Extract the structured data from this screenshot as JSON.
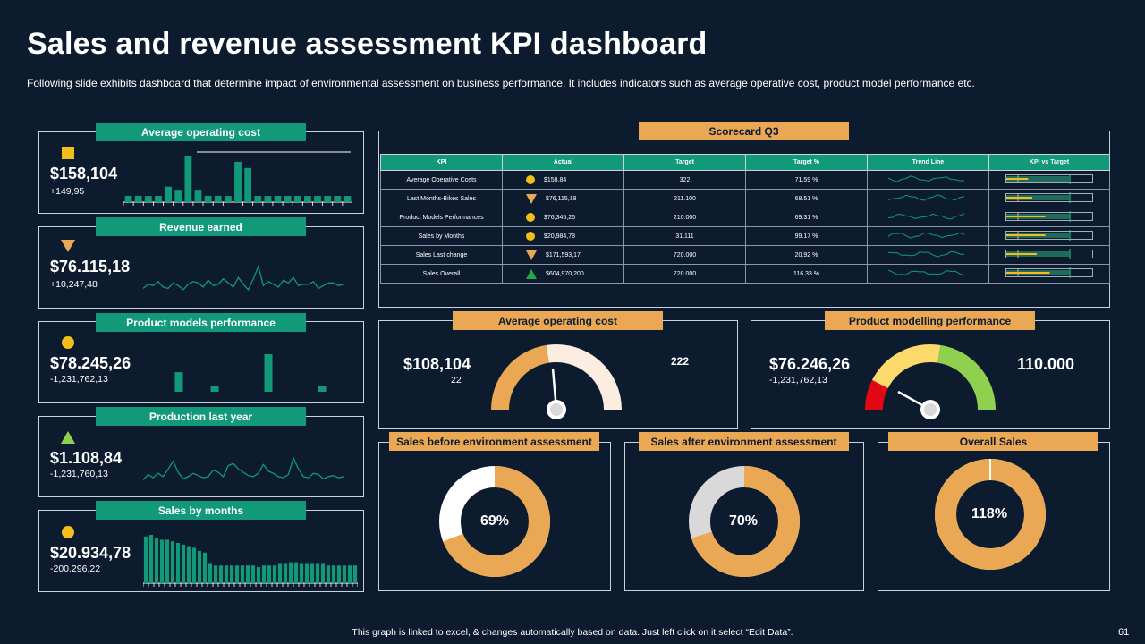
{
  "header": {
    "title": "Sales and revenue assessment KPI dashboard",
    "subtitle": "Following slide exhibits dashboard that determine impact of environmental assessment on business performance. It includes indicators such as average operative cost, product model performance etc."
  },
  "kpi_cards": [
    {
      "title": "Average operating cost",
      "icon": "square-icon",
      "value": "$158,104",
      "delta": "+149,95",
      "chart_type": "bar",
      "series": [
        2,
        2,
        2,
        2,
        5,
        4,
        15,
        4,
        2,
        2,
        2,
        13,
        11,
        2,
        2,
        2,
        2,
        2,
        2,
        2,
        2,
        2,
        2
      ]
    },
    {
      "title": "Revenue earned",
      "icon": "triangle-down-icon",
      "value": "$76.115,18",
      "delta": "+10,247,48",
      "chart_type": "line",
      "series": [
        5,
        8,
        7,
        10,
        6,
        5,
        9,
        7,
        4,
        8,
        10,
        9,
        6,
        11,
        7,
        8,
        12,
        9,
        6,
        13,
        8,
        4,
        12,
        21,
        7,
        10,
        8,
        6,
        11,
        9,
        13,
        7,
        8,
        8,
        10,
        5,
        7,
        9,
        9,
        7,
        8
      ]
    },
    {
      "title": "Product models performance",
      "icon": "circle-icon",
      "value": "$78.245,26",
      "delta": "-1,231,762,13",
      "chart_type": "bar",
      "series": [
        0,
        25,
        0,
        8,
        0,
        0,
        48,
        0,
        0,
        8
      ]
    },
    {
      "title": "Production last year",
      "icon": "triangle-up-icon",
      "value": "$1.108,84",
      "delta": "-1,231,760,13",
      "chart_type": "line",
      "series": [
        6,
        11,
        8,
        12,
        9,
        16,
        23,
        13,
        7,
        9,
        12,
        10,
        8,
        9,
        15,
        13,
        9,
        19,
        21,
        16,
        13,
        10,
        9,
        12,
        20,
        14,
        12,
        9,
        8,
        11,
        26,
        16,
        9,
        8,
        12,
        11,
        7,
        9,
        10,
        8,
        9
      ]
    },
    {
      "title": "Sales by months",
      "icon": "circle-icon",
      "value": "$20.934,78",
      "delta": "-200.296,22",
      "chart_type": "bar",
      "series": [
        58,
        60,
        56,
        54,
        54,
        52,
        50,
        48,
        46,
        44,
        40,
        38,
        24,
        22,
        22,
        22,
        22,
        22,
        22,
        22,
        22,
        20,
        22,
        22,
        22,
        24,
        24,
        26,
        26,
        24,
        24,
        24,
        24,
        24,
        22,
        22,
        22,
        22,
        22,
        22
      ]
    }
  ],
  "scorecard": {
    "title": "Scorecard Q3",
    "columns": [
      "KPI",
      "Actual",
      "Target",
      "Target %",
      "Trend Line",
      "KPI vs Target"
    ],
    "rows": [
      {
        "kpi": "Average Operative Costs",
        "indicator": "circle-icon",
        "actual": "$158,84",
        "target": "322",
        "target_pct": "71.59 %",
        "bar": 0.25
      },
      {
        "kpi": "Last Months-Bikes Sales",
        "indicator": "triangle-down-icon",
        "actual": "$76,115,18",
        "target": "211.100",
        "target_pct": "68.51 %",
        "bar": 0.3
      },
      {
        "kpi": "Product Models Performances",
        "indicator": "circle-icon",
        "actual": "$76,345,26",
        "target": "210.000",
        "target_pct": "69.31 %",
        "bar": 0.45
      },
      {
        "kpi": "Sales by Months",
        "indicator": "circle-icon",
        "actual": "$20,984,78",
        "target": "31.111",
        "target_pct": "99.17 %",
        "bar": 0.45
      },
      {
        "kpi": "Sales Last change",
        "indicator": "triangle-down-icon",
        "actual": "$171,593,17",
        "target": "720.000",
        "target_pct": "20.92 %",
        "bar": 0.35
      },
      {
        "kpi": "Sales Overall",
        "indicator": "triangle-up-icon",
        "actual": "$604,970,200",
        "target": "720.000",
        "target_pct": "116.33 %",
        "bar": 0.5
      }
    ]
  },
  "gauges": [
    {
      "title": "Average operating cost",
      "value": "$108,104",
      "sub": "22",
      "max_label": "222",
      "fraction": 0.45
    },
    {
      "title": "Product modelling performance",
      "value": "$76.246,26",
      "sub": "-1,231,762,13",
      "max_label": "110.000",
      "fraction": 0.12
    }
  ],
  "donuts": [
    {
      "title": "Sales before environment assessment",
      "label": "69%",
      "value": 69,
      "rest_color": "#ffffff"
    },
    {
      "title": "Sales after environment assessment",
      "label": "70%",
      "value": 70,
      "rest_color": "#d9d9d9"
    },
    {
      "title": "Overall Sales",
      "label": "118%",
      "value": 100,
      "rest_color": "#ffffff"
    }
  ],
  "colors": {
    "green": "#11997a",
    "orange": "#eaa854",
    "yellow": "#f4be1a",
    "bg": "#0c1b2e"
  },
  "footer": {
    "note": "This graph is linked to excel, & changes automatically based on data. Just left click on it select “Edit Data”.",
    "page": "61"
  }
}
